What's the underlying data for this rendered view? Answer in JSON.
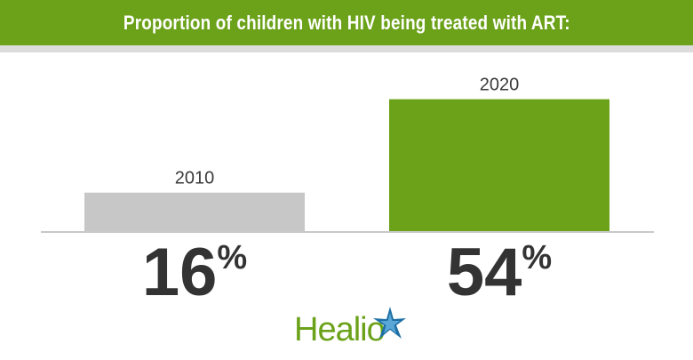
{
  "banner": {
    "title": "Proportion of children with HIV being treated with ART:"
  },
  "chart_data": {
    "type": "bar",
    "title": "Proportion of children with HIV being treated with ART:",
    "categories": [
      "2010",
      "2020"
    ],
    "values": [
      16,
      54
    ],
    "value_labels": [
      "16",
      "54"
    ],
    "value_unit": "%",
    "colors": [
      "#c7c7c7",
      "#6ba21a"
    ],
    "ylim": [
      0,
      60
    ],
    "xlabel": "",
    "ylabel": "",
    "grid": false,
    "legend": "none"
  },
  "logo": {
    "text": "Healio",
    "icon": "star-icon",
    "text_color": "#6ba21a",
    "star_colors": [
      "#1d6fa5",
      "#5aa6d6"
    ]
  }
}
